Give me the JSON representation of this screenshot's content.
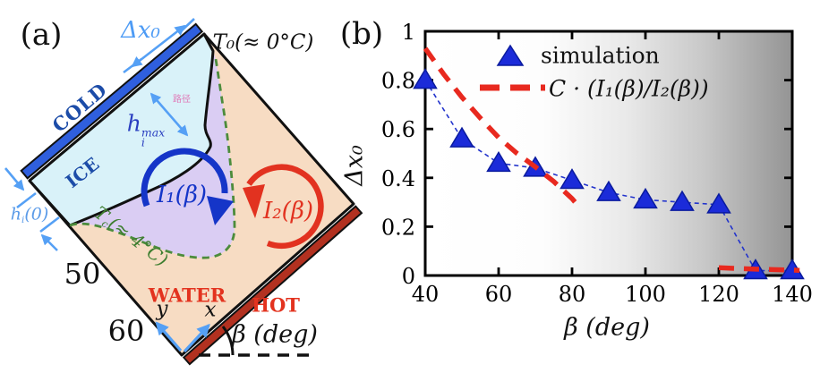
{
  "panel_a": {
    "tag": "(a)",
    "labels": {
      "dx0": "Δx₀",
      "t0": "T₀(≈ 0°C)",
      "cold_wall": "COLD",
      "ice_region": "ICE",
      "path_note": "路径",
      "h_max_base": "h",
      "h_max_sup": "max",
      "h_max_sub": "i",
      "i1_loop": "I₁(β)",
      "i2_loop": "I₂(β)",
      "tc_base": "T",
      "tc_sub": "c",
      "tc_rest": "(≈ 4°C)",
      "hi0_base": "h",
      "hi0_sub": "i",
      "hi0_rest": "(0)",
      "num_50": "50",
      "num_60": "60",
      "water_region": "WATER",
      "hot_wall": "HOT",
      "axis_x": "x",
      "axis_y": "y",
      "beta_axis": "β (deg)"
    },
    "colors": {
      "cold_wall": "#2F5FDE",
      "hot_wall": "#B23120",
      "ice_fill": "#D9F2F9",
      "water_fill": "#F7DCC3",
      "plume_fill": "#DACDF3",
      "green_dash": "#4C8C3C",
      "i1_arrow": "#1535C8",
      "i2_arrow": "#E23220",
      "annotation_blue": "#55A0F5",
      "cold_text": "#1C4CA8",
      "hot_text": "#E3331F"
    }
  },
  "panel_b": {
    "tag": "(b)",
    "legend": {
      "sim_label": "simulation",
      "fit_label": "C · (I₁(β)/I₂(β))"
    }
  },
  "chart_data": {
    "type": "scatter",
    "title": "",
    "xlabel": "β (deg)",
    "ylabel": "Δx₀",
    "xlim": [
      40,
      140
    ],
    "ylim": [
      0,
      1
    ],
    "xticks": [
      40,
      60,
      80,
      100,
      120,
      140
    ],
    "xtick_labels": [
      "40",
      "60",
      "80",
      "100",
      "120",
      "140"
    ],
    "yticks": [
      0,
      0.2,
      0.4,
      0.6,
      0.8,
      1
    ],
    "ytick_labels": [
      "0",
      "0.2",
      "0.4",
      "0.6",
      "0.8",
      "1"
    ],
    "grid": false,
    "legend_position": "upper center, no frame",
    "background": "horizontal gradient white to gray (left to right)",
    "series": [
      {
        "name": "simulation",
        "type": "scatter",
        "marker": "triangle-up",
        "color": "#1B2BD9",
        "edge_color": "#0A1B9E",
        "connector": "dashed",
        "connector_color": "#2233CC",
        "x": [
          40,
          50,
          60,
          70,
          80,
          90,
          100,
          110,
          120,
          130,
          140
        ],
        "y": [
          0.8,
          0.56,
          0.46,
          0.44,
          0.39,
          0.34,
          0.31,
          0.3,
          0.29,
          0.02,
          0.02
        ]
      },
      {
        "name": "C · (I₁(β)/I₂(β))",
        "type": "line",
        "style": "dashed",
        "color": "#E8291F",
        "segments": [
          [
            [
              40,
              0.93
            ],
            [
              45,
              0.825
            ],
            [
              50,
              0.73
            ],
            [
              55,
              0.645
            ],
            [
              60,
              0.565
            ],
            [
              65,
              0.5
            ],
            [
              70,
              0.445
            ],
            [
              75,
              0.385
            ],
            [
              80,
              0.315
            ],
            [
              82,
              0.28
            ]
          ],
          [
            [
              120,
              0.032
            ],
            [
              130,
              0.026
            ],
            [
              140,
              0.022
            ],
            [
              142,
              0.021
            ]
          ]
        ]
      }
    ]
  }
}
